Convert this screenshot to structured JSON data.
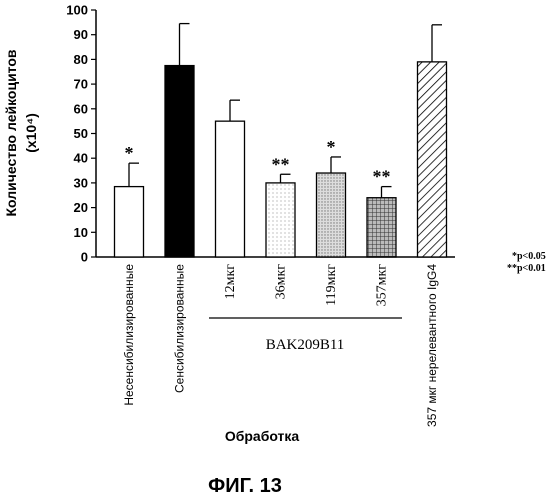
{
  "chart_data": {
    "type": "bar",
    "ylabel_line1": "Количество лейкоцитов",
    "ylabel_line2": "(x10⁴)",
    "xlabel": "Обработка",
    "figure_caption": "ФИГ. 13",
    "group_label": "BAK209B11",
    "ylim": [
      0,
      100
    ],
    "yticks": [
      0,
      10,
      20,
      30,
      40,
      50,
      60,
      70,
      80,
      90,
      100
    ],
    "categories": [
      "Несенсибилизированные",
      "Сенсибилизированные",
      "12мкг",
      "36мкг",
      "119мкг",
      "357мкг",
      "357 мкг нерелевантного IgG4"
    ],
    "values": [
      28.5,
      77.5,
      55,
      30,
      34,
      24,
      79
    ],
    "errors": [
      9.5,
      17,
      8.5,
      3.5,
      6.5,
      4.5,
      15
    ],
    "significance": [
      "*",
      "",
      "",
      "**",
      "*",
      "**",
      ""
    ],
    "fills": [
      "white",
      "black",
      "white",
      "stipple-light",
      "stipple",
      "crosshatch",
      "hatch"
    ],
    "legend_notes": [
      "*p<0.05",
      "**p<0.01"
    ]
  }
}
